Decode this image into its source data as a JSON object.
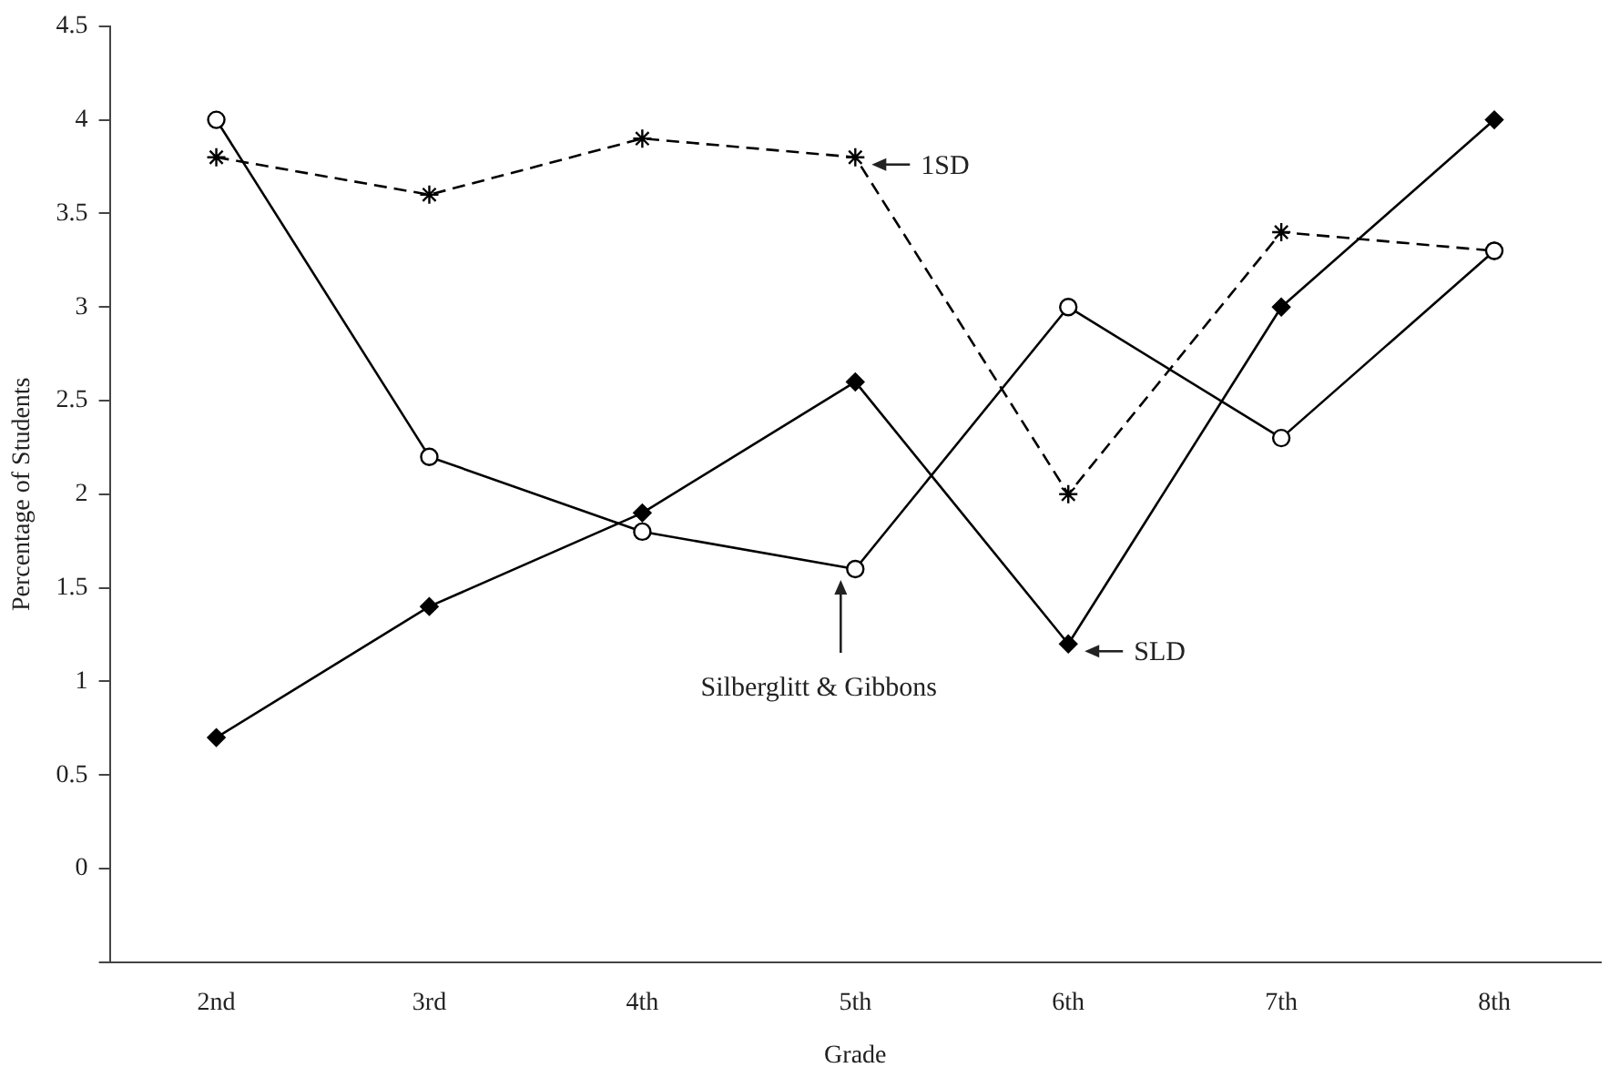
{
  "chart_data": {
    "type": "line",
    "xlabel": "Grade",
    "ylabel": "Percentage of Students",
    "categories": [
      "2nd",
      "3rd",
      "4th",
      "5th",
      "6th",
      "7th",
      "8th"
    ],
    "series": [
      {
        "name": "SLD",
        "color": "#000000",
        "marker": "diamond",
        "line_style": "solid",
        "values": [
          0.7,
          1.4,
          1.9,
          2.6,
          1.2,
          3.0,
          4.0
        ]
      },
      {
        "name": "Silberglitt & Gibbons",
        "color": "#000000",
        "marker": "circle",
        "line_style": "solid",
        "values": [
          4.0,
          2.2,
          1.8,
          1.6,
          3.0,
          2.3,
          3.3
        ]
      },
      {
        "name": "1SD",
        "color": "#000000",
        "marker": "cross",
        "line_style": "dashed",
        "values": [
          3.8,
          3.6,
          3.9,
          3.8,
          2.0,
          3.4,
          3.3
        ]
      }
    ],
    "ylim": [
      -0.5,
      4.5
    ],
    "yticks": [
      {
        "value": -0.5,
        "label": null
      },
      0,
      0.5,
      1,
      1.5,
      2,
      2.5,
      3,
      3.5,
      4,
      4.5
    ],
    "grid": false,
    "legend": false
  }
}
